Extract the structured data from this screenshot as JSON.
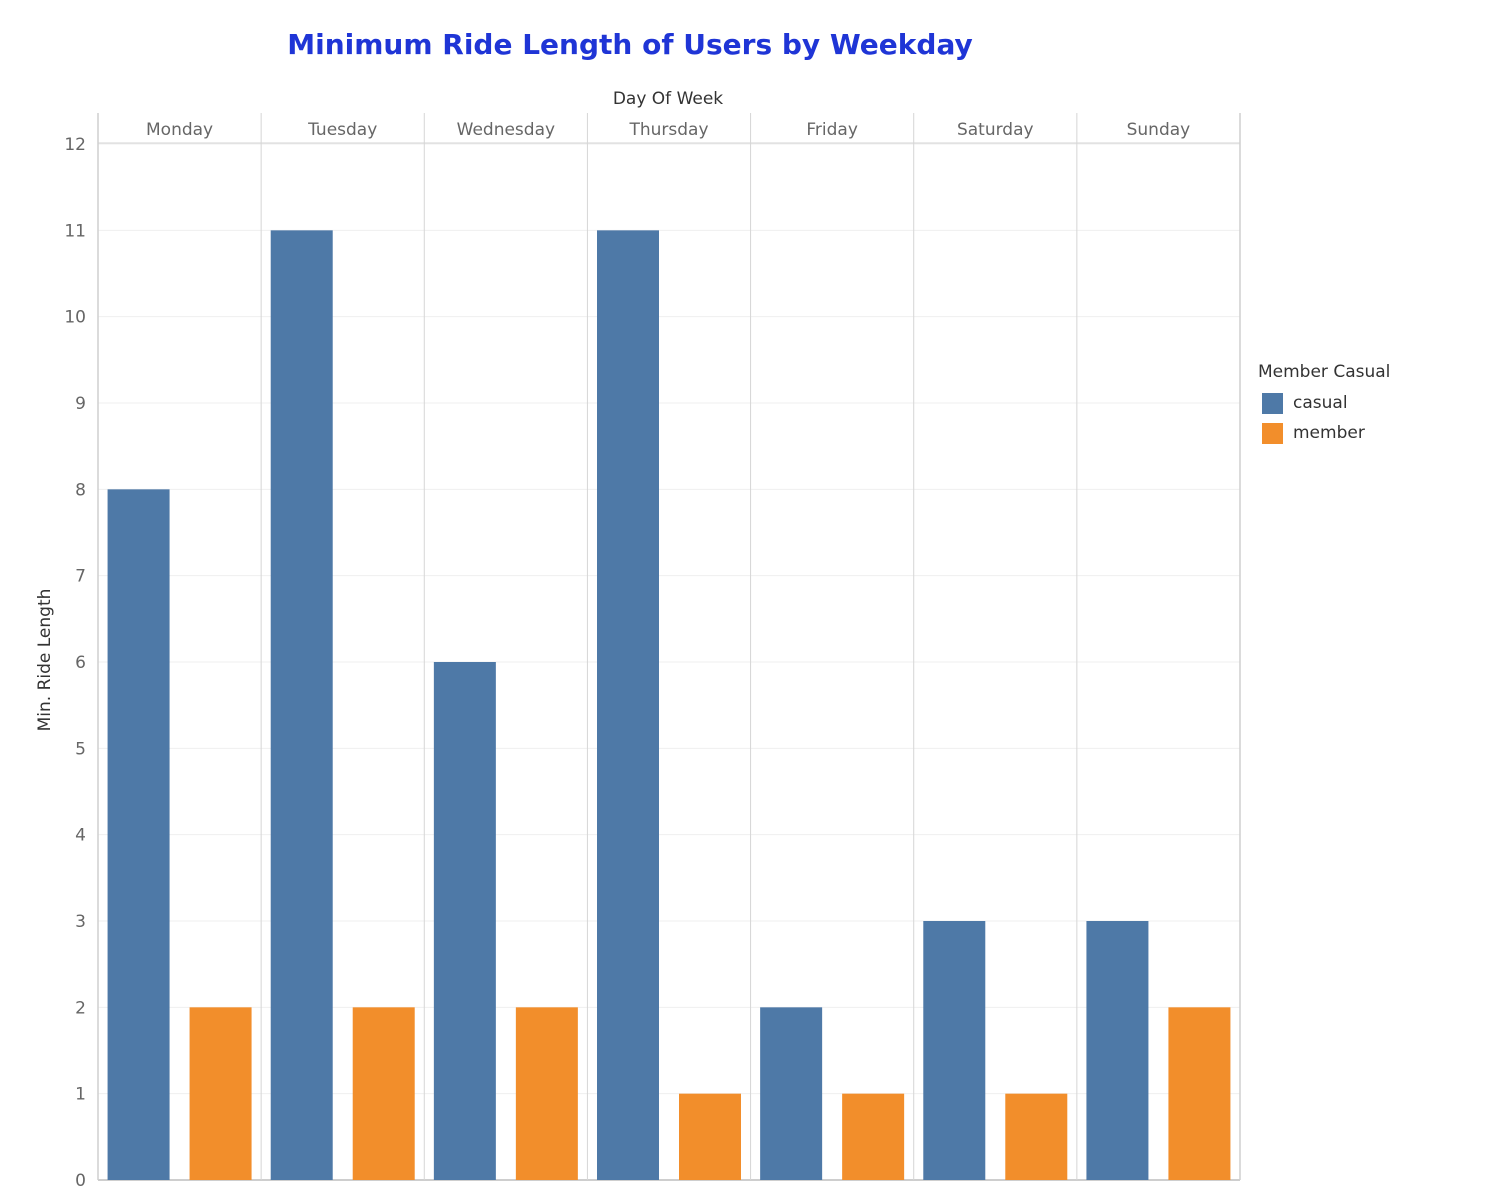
{
  "chart_data": {
    "type": "bar",
    "title": "Minimum Ride Length of Users by Weekday",
    "xlabel": "Day Of Week",
    "ylabel": "Min. Ride Length",
    "categories": [
      "Monday",
      "Tuesday",
      "Wednesday",
      "Thursday",
      "Friday",
      "Saturday",
      "Sunday"
    ],
    "series": [
      {
        "name": "casual",
        "color": "#4e79a7",
        "values": [
          8,
          11,
          6,
          11,
          2,
          3,
          3
        ]
      },
      {
        "name": "member",
        "color": "#f28e2b",
        "values": [
          2,
          2,
          2,
          1,
          1,
          1,
          2
        ]
      }
    ],
    "ylim": [
      0,
      12
    ],
    "yticks": [
      0,
      1,
      2,
      3,
      4,
      5,
      6,
      7,
      8,
      9,
      10,
      11,
      12
    ],
    "grid": true,
    "legend": {
      "title": "Member Casual",
      "position": "right"
    }
  }
}
